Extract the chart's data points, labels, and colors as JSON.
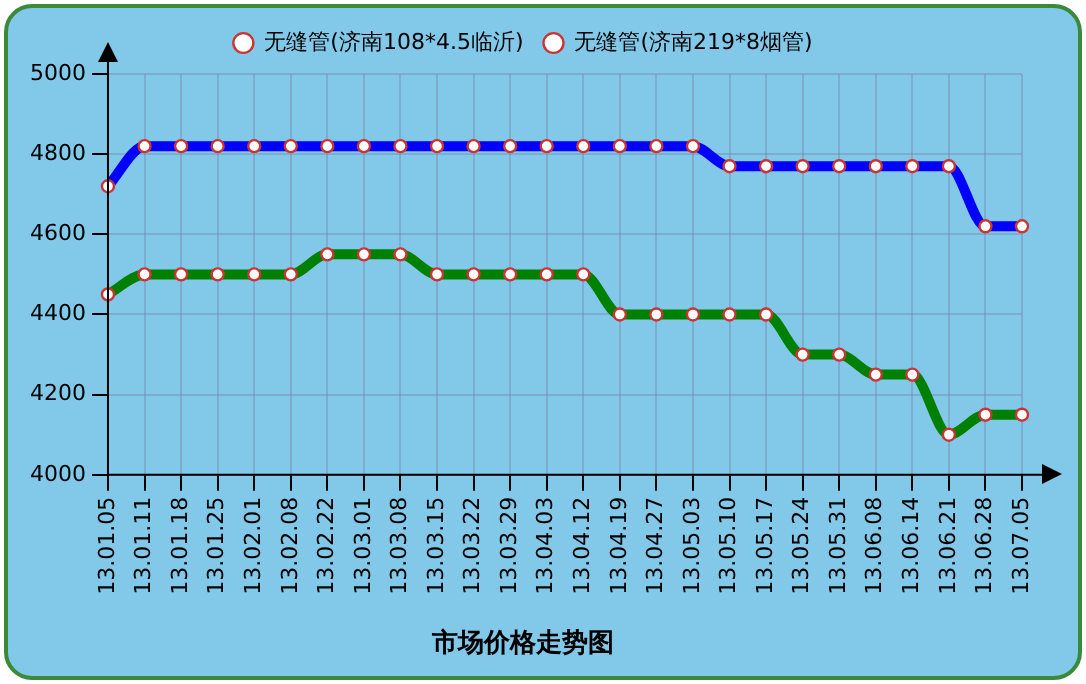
{
  "chart_data": {
    "type": "line",
    "title": "市场价格走势图",
    "categories": [
      "13.01.05",
      "13.01.11",
      "13.01.18",
      "13.01.25",
      "13.02.01",
      "13.02.08",
      "13.02.22",
      "13.03.01",
      "13.03.08",
      "13.03.15",
      "13.03.22",
      "13.03.29",
      "13.04.03",
      "13.04.12",
      "13.04.19",
      "13.04.27",
      "13.05.03",
      "13.05.10",
      "13.05.17",
      "13.05.24",
      "13.05.31",
      "13.06.08",
      "13.06.14",
      "13.06.21",
      "13.06.28",
      "13.07.05"
    ],
    "series": [
      {
        "name": "无缝管(济南108*4.5临沂)",
        "color": "#008000",
        "values": [
          4450,
          4500,
          4500,
          4500,
          4500,
          4500,
          4550,
          4550,
          4550,
          4500,
          4500,
          4500,
          4500,
          4500,
          4400,
          4400,
          4400,
          4400,
          4400,
          4300,
          4300,
          4250,
          4250,
          4100,
          4150,
          4150
        ]
      },
      {
        "name": "无缝管(济南219*8烟管)",
        "color": "#0000ff",
        "values": [
          4720,
          4820,
          4820,
          4820,
          4820,
          4820,
          4820,
          4820,
          4820,
          4820,
          4820,
          4820,
          4820,
          4820,
          4820,
          4820,
          4820,
          4770,
          4770,
          4770,
          4770,
          4770,
          4770,
          4770,
          4620,
          4620
        ]
      }
    ],
    "ylim": [
      4000,
      5000
    ],
    "yticks": [
      4000,
      4200,
      4400,
      4600,
      4800,
      5000
    ],
    "grid": true,
    "legend": "top",
    "marker": "circle",
    "line_style": "solid"
  }
}
